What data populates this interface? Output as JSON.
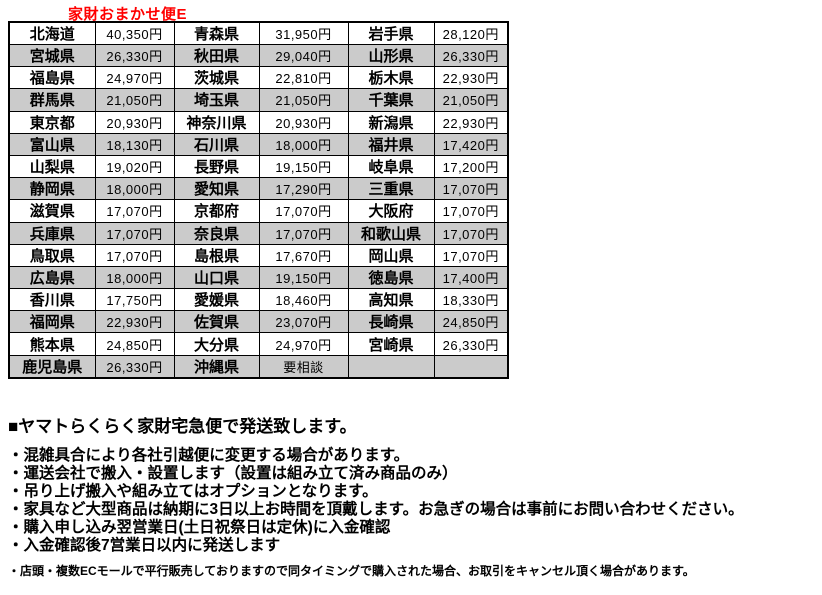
{
  "title": {
    "text": "家財おまかせ便E",
    "color": "#ff0000"
  },
  "colors": {
    "shaded_row": "#cbcbcb",
    "table_border": "#000000",
    "text": "#000000",
    "background": "#ffffff"
  },
  "table": {
    "column_roles": [
      "prefecture",
      "price",
      "prefecture",
      "price",
      "prefecture",
      "price"
    ],
    "rows": [
      [
        "北海道",
        "40,350円",
        "青森県",
        "31,950円",
        "岩手県",
        "28,120円"
      ],
      [
        "宮城県",
        "26,330円",
        "秋田県",
        "29,040円",
        "山形県",
        "26,330円"
      ],
      [
        "福島県",
        "24,970円",
        "茨城県",
        "22,810円",
        "栃木県",
        "22,930円"
      ],
      [
        "群馬県",
        "21,050円",
        "埼玉県",
        "21,050円",
        "千葉県",
        "21,050円"
      ],
      [
        "東京都",
        "20,930円",
        "神奈川県",
        "20,930円",
        "新潟県",
        "22,930円"
      ],
      [
        "富山県",
        "18,130円",
        "石川県",
        "18,000円",
        "福井県",
        "17,420円"
      ],
      [
        "山梨県",
        "19,020円",
        "長野県",
        "19,150円",
        "岐阜県",
        "17,200円"
      ],
      [
        "静岡県",
        "18,000円",
        "愛知県",
        "17,290円",
        "三重県",
        "17,070円"
      ],
      [
        "滋賀県",
        "17,070円",
        "京都府",
        "17,070円",
        "大阪府",
        "17,070円"
      ],
      [
        "兵庫県",
        "17,070円",
        "奈良県",
        "17,070円",
        "和歌山県",
        "17,070円"
      ],
      [
        "鳥取県",
        "17,070円",
        "島根県",
        "17,670円",
        "岡山県",
        "17,070円"
      ],
      [
        "広島県",
        "18,000円",
        "山口県",
        "19,150円",
        "徳島県",
        "17,400円"
      ],
      [
        "香川県",
        "17,750円",
        "愛媛県",
        "18,460円",
        "高知県",
        "18,330円"
      ],
      [
        "福岡県",
        "22,930円",
        "佐賀県",
        "23,070円",
        "長崎県",
        "24,850円"
      ],
      [
        "熊本県",
        "24,850円",
        "大分県",
        "24,970円",
        "宮崎県",
        "26,330円"
      ],
      [
        "鹿児島県",
        "26,330円",
        "沖縄県",
        "要相談",
        "",
        ""
      ]
    ]
  },
  "notes": {
    "heading": "■ヤマトらくらく家財宅急便で発送致します。",
    "bullets": [
      "・混雑具合により各社引越便に変更する場合があります。",
      "・運送会社で搬入・設置します（設置は組み立て済み商品のみ）",
      "・吊り上げ搬入や組み立てはオプションとなります。",
      "・家具など大型商品は納期に3日以上お時間を頂戴します。お急ぎの場合は事前にお問い合わせください。",
      "・購入申し込み翌営業日(土日祝祭日は定休)に入金確認",
      "・入金確認後7営業日以内に発送します"
    ],
    "footnote": "・店頭・複数ECモールで平行販売しておりますので同タイミングで購入された場合、お取引をキャンセル頂く場合があります。"
  }
}
